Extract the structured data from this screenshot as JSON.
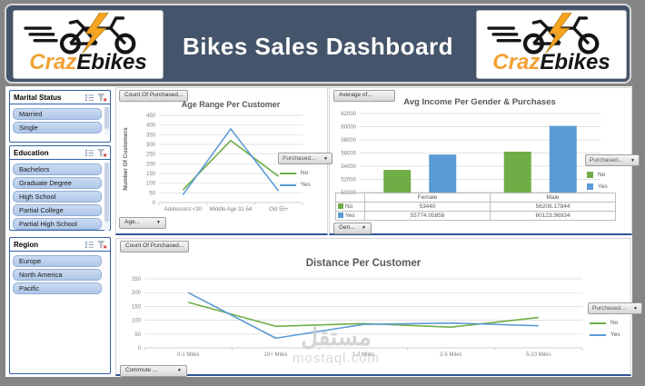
{
  "header": {
    "title": "Bikes Sales Dashboard",
    "brand_orange": "Craz",
    "brand_dark": "Ebikes"
  },
  "colors": {
    "header_bg": "#44546A",
    "series_no_green": "#70AD47",
    "series_yes_blue": "#5B9BD5",
    "slicer_border": "#3060A8",
    "panel_bottom_line": "#2F5597",
    "logo_bolt_orange": "#F7A421"
  },
  "slicers": [
    {
      "title": "Marital Status",
      "items": [
        "Married",
        "Single"
      ],
      "scrollbar": true,
      "thumb": 0.75
    },
    {
      "title": "Education",
      "items": [
        "Bachelors",
        "Graduate Degree",
        "High School",
        "Partial College",
        "Partial High School"
      ],
      "scrollbar": true,
      "thumb": 0.85
    },
    {
      "title": "Region",
      "items": [
        "Europe",
        "North America",
        "Pacific"
      ],
      "scrollbar": false,
      "thumb": 0
    }
  ],
  "chart_data": [
    {
      "type": "line",
      "title": "Age Range Per Customer",
      "ylabel": "Number Of Customers",
      "ylim": [
        0,
        450
      ],
      "ytick": 50,
      "grid": true,
      "legend_position": "right",
      "categories": [
        "Adolescent <30",
        "Middle Age 31-54",
        "Old 55+"
      ],
      "series": [
        {
          "name": "No",
          "color": "#70AD47",
          "values": [
            65,
            320,
            135
          ]
        },
        {
          "name": "Yes",
          "color": "#5B9BD5",
          "values": [
            40,
            380,
            60
          ]
        }
      ],
      "field_button": "Count Of Purchased...",
      "axis_button": "Age...",
      "legend_button": "Purchased..."
    },
    {
      "type": "bar",
      "title": "Avg Income Per Gender & Purchases",
      "ylabel": "",
      "ylim": [
        50000,
        62000
      ],
      "ytick": 2000,
      "grid": true,
      "legend_position": "right",
      "categories": [
        "Female",
        "Male"
      ],
      "series": [
        {
          "name": "No",
          "color": "#70AD47",
          "values": [
            53440,
            56208.17844
          ]
        },
        {
          "name": "Yes",
          "color": "#5B9BD5",
          "values": [
            55774.05858,
            60123.96934
          ]
        }
      ],
      "data_table": {
        "rows": [
          {
            "name": "No",
            "cells": [
              "53440",
              "56208.17844"
            ]
          },
          {
            "name": "Yes",
            "cells": [
              "55774.05858",
              "60123.96934"
            ]
          }
        ]
      },
      "field_button": "Average of...",
      "axis_button": "Gen...",
      "legend_button": "Purchased..."
    },
    {
      "type": "line",
      "title": "Distance Per Customer",
      "ylabel": "",
      "ylim": [
        0,
        250
      ],
      "ytick": 50,
      "grid": true,
      "legend_position": "right",
      "categories": [
        "0-1 Miles",
        "10+ Miles",
        "1-2 Miles",
        "2-5 Miles",
        "5-10 Miles"
      ],
      "series": [
        {
          "name": "No",
          "color": "#70AD47",
          "values": [
            165,
            78,
            88,
            75,
            110
          ]
        },
        {
          "name": "Yes",
          "color": "#5B9BD5",
          "values": [
            200,
            35,
            85,
            90,
            80
          ]
        }
      ],
      "field_button": "Count Of Purchased...",
      "axis_button": "Commute ...",
      "legend_button": "Purchased..."
    }
  ],
  "watermark": {
    "logo_text": "مستقل",
    "domain": "mostaql.com"
  }
}
